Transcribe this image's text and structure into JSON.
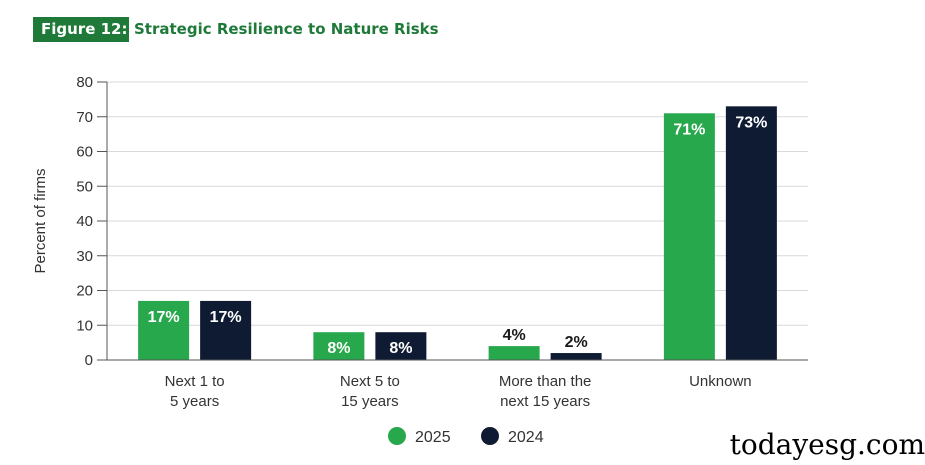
{
  "header": {
    "figure_label": "Figure 12:",
    "title": "Strategic Resilience to Nature Risks"
  },
  "watermark": "todayesg.com",
  "colors": {
    "series_2025": "#28a84d",
    "series_2024": "#0f1b33",
    "title": "#1f7a3a",
    "badge_bg": "#1f7a3a"
  },
  "chart_data": {
    "type": "bar",
    "title": "Strategic Resilience to Nature Risks",
    "xlabel": "",
    "ylabel": "Percent of firms",
    "ylim": [
      0,
      80
    ],
    "yticks": [
      0,
      10,
      20,
      30,
      40,
      50,
      60,
      70,
      80
    ],
    "grid": true,
    "legend": "bottom-center",
    "categories": [
      [
        "Next 1 to",
        "5 years"
      ],
      [
        "Next 5 to",
        "15 years"
      ],
      [
        "More than the",
        "next 15 years"
      ],
      [
        "Unknown"
      ]
    ],
    "series": [
      {
        "name": "2025",
        "values": [
          17,
          8,
          4,
          71
        ],
        "labels": [
          "17%",
          "8%",
          "4%",
          "71%"
        ]
      },
      {
        "name": "2024",
        "values": [
          17,
          8,
          2,
          73
        ],
        "labels": [
          "17%",
          "8%",
          "2%",
          "73%"
        ]
      }
    ]
  }
}
